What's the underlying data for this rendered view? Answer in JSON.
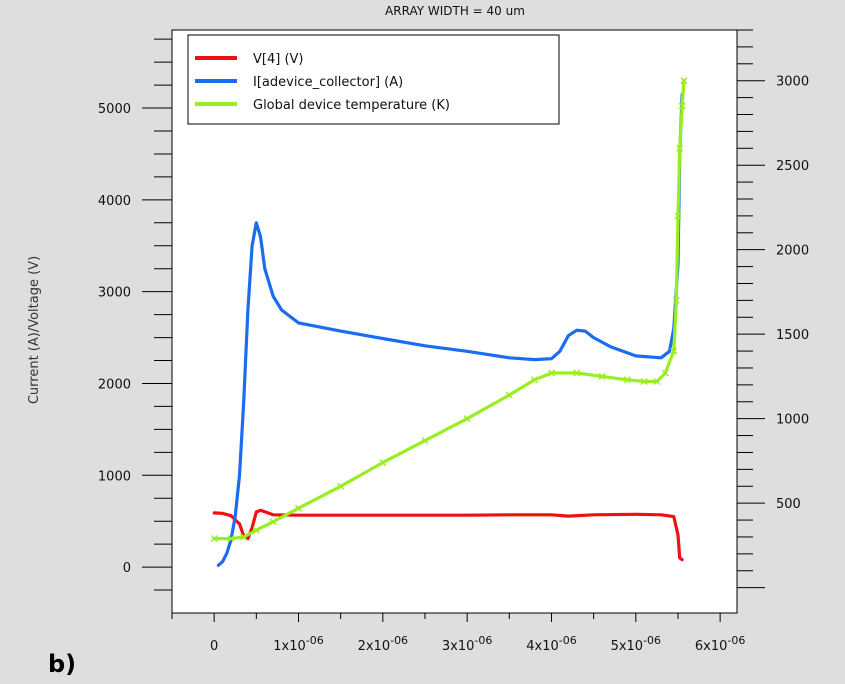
{
  "panel_label": "b)",
  "chart_data": {
    "type": "line",
    "title": "ARRAY WIDTH = 40 um",
    "xlabel": "",
    "ylabel": "Current (A)/Voltage (V)",
    "y2label": "",
    "xlim": [
      -5e-07,
      6.2e-06
    ],
    "ylim": [
      -500,
      5850
    ],
    "y2lim": [
      -150,
      3300
    ],
    "x_ticks": [
      {
        "value": 0,
        "label": "0"
      },
      {
        "value": 1e-06,
        "label": "1x10",
        "exp": "-06"
      },
      {
        "value": 2e-06,
        "label": "2x10",
        "exp": "-06"
      },
      {
        "value": 3e-06,
        "label": "3x10",
        "exp": "-06"
      },
      {
        "value": 4e-06,
        "label": "4x10",
        "exp": "-06"
      },
      {
        "value": 5e-06,
        "label": "5x10",
        "exp": "-06"
      },
      {
        "value": 6e-06,
        "label": "6x10",
        "exp": "-06"
      }
    ],
    "y_ticks": [
      0,
      1000,
      2000,
      3000,
      4000,
      5000
    ],
    "y2_ticks": [
      500,
      1000,
      1500,
      2000,
      2500,
      3000
    ],
    "legend_position": "top-left",
    "series": [
      {
        "name": "V[4] (V)",
        "axis": "left",
        "color": "#ee1111",
        "x": [
          0,
          1e-07,
          2e-07,
          3e-07,
          3.5e-07,
          4e-07,
          4.5e-07,
          5e-07,
          5.5e-07,
          7e-07,
          1e-06,
          1.5e-06,
          2e-06,
          3e-06,
          3.5e-06,
          4e-06,
          4.2e-06,
          4.5e-06,
          5e-06,
          5.3e-06,
          5.45e-06,
          5.5e-06,
          5.52e-06,
          5.55e-06
        ],
        "y": [
          590,
          585,
          560,
          470,
          340,
          310,
          430,
          600,
          620,
          570,
          565,
          565,
          565,
          565,
          570,
          570,
          555,
          570,
          575,
          570,
          550,
          350,
          100,
          80
        ]
      },
      {
        "name": "I[adevice_collector] (A)",
        "axis": "left",
        "color": "#1a6cf0",
        "x": [
          5e-08,
          1e-07,
          1.5e-07,
          2e-07,
          2.5e-07,
          3e-07,
          3.5e-07,
          4e-07,
          4.5e-07,
          5e-07,
          5.5e-07,
          6e-07,
          7e-07,
          8e-07,
          1e-06,
          1.5e-06,
          2e-06,
          2.5e-06,
          3e-06,
          3.5e-06,
          3.8e-06,
          4e-06,
          4.1e-06,
          4.2e-06,
          4.3e-06,
          4.4e-06,
          4.5e-06,
          4.7e-06,
          5e-06,
          5.3e-06,
          5.4e-06,
          5.45e-06,
          5.5e-06,
          5.52e-06,
          5.55e-06
        ],
        "y": [
          20,
          60,
          150,
          300,
          550,
          1000,
          1800,
          2800,
          3500,
          3750,
          3600,
          3250,
          2950,
          2800,
          2660,
          2570,
          2490,
          2410,
          2350,
          2280,
          2260,
          2270,
          2350,
          2520,
          2580,
          2570,
          2500,
          2400,
          2300,
          2280,
          2350,
          2600,
          3300,
          4500,
          5150
        ]
      },
      {
        "name": "Global device temperature (K)",
        "axis": "right",
        "color": "#99ee22",
        "x": [
          0,
          2e-07,
          3.5e-07,
          5e-07,
          7e-07,
          1e-06,
          1.5e-06,
          2e-06,
          2.5e-06,
          3e-06,
          3.5e-06,
          3.8e-06,
          4e-06,
          4.3e-06,
          4.6e-06,
          4.9e-06,
          5.1e-06,
          5.25e-06,
          5.35e-06,
          5.45e-06,
          5.48e-06,
          5.5e-06,
          5.52e-06,
          5.55e-06,
          5.57e-06
        ],
        "y": [
          290,
          290,
          300,
          340,
          390,
          470,
          600,
          740,
          870,
          1000,
          1140,
          1230,
          1270,
          1270,
          1250,
          1230,
          1220,
          1220,
          1270,
          1400,
          1700,
          2200,
          2600,
          2850,
          3000
        ]
      }
    ]
  }
}
